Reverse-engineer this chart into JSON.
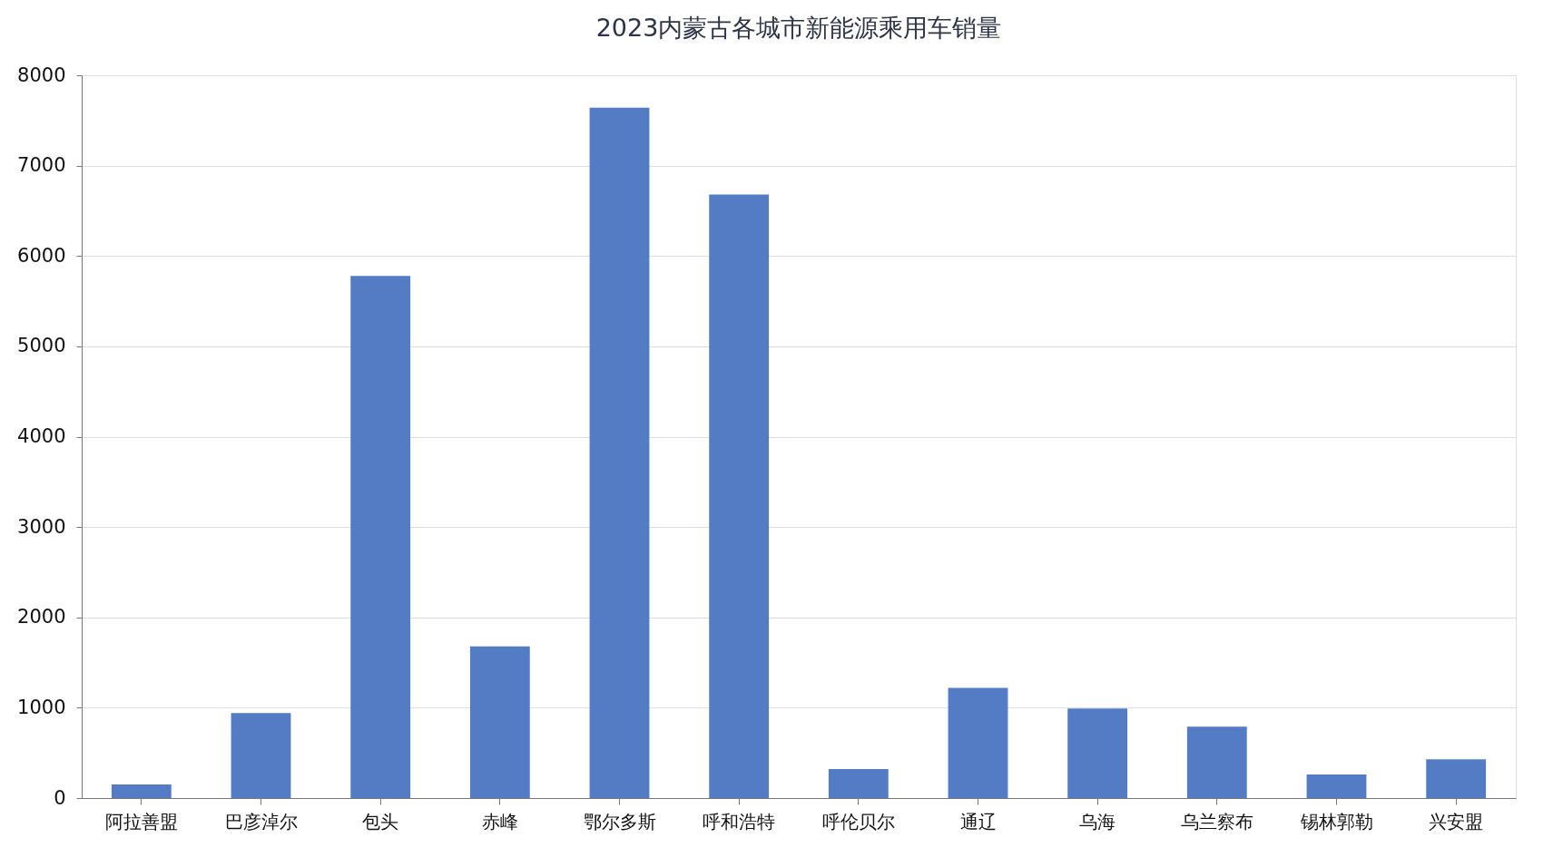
{
  "chart_data": {
    "type": "bar",
    "title": "2023内蒙古各城市新能源乘用车销量",
    "categories": [
      "阿拉善盟",
      "巴彦淖尔",
      "包头",
      "赤峰",
      "鄂尔多斯",
      "呼和浩特",
      "呼伦贝尔",
      "通辽",
      "乌海",
      "乌兰察布",
      "锡林郭勒",
      "兴安盟"
    ],
    "values": [
      150,
      940,
      5780,
      1680,
      7640,
      6680,
      320,
      1220,
      990,
      790,
      260,
      430
    ],
    "color": "#5079c4",
    "ylim": [
      0,
      8000
    ],
    "yticks": [
      0,
      1000,
      2000,
      3000,
      4000,
      5000,
      6000,
      7000,
      8000
    ],
    "grid": "y"
  }
}
